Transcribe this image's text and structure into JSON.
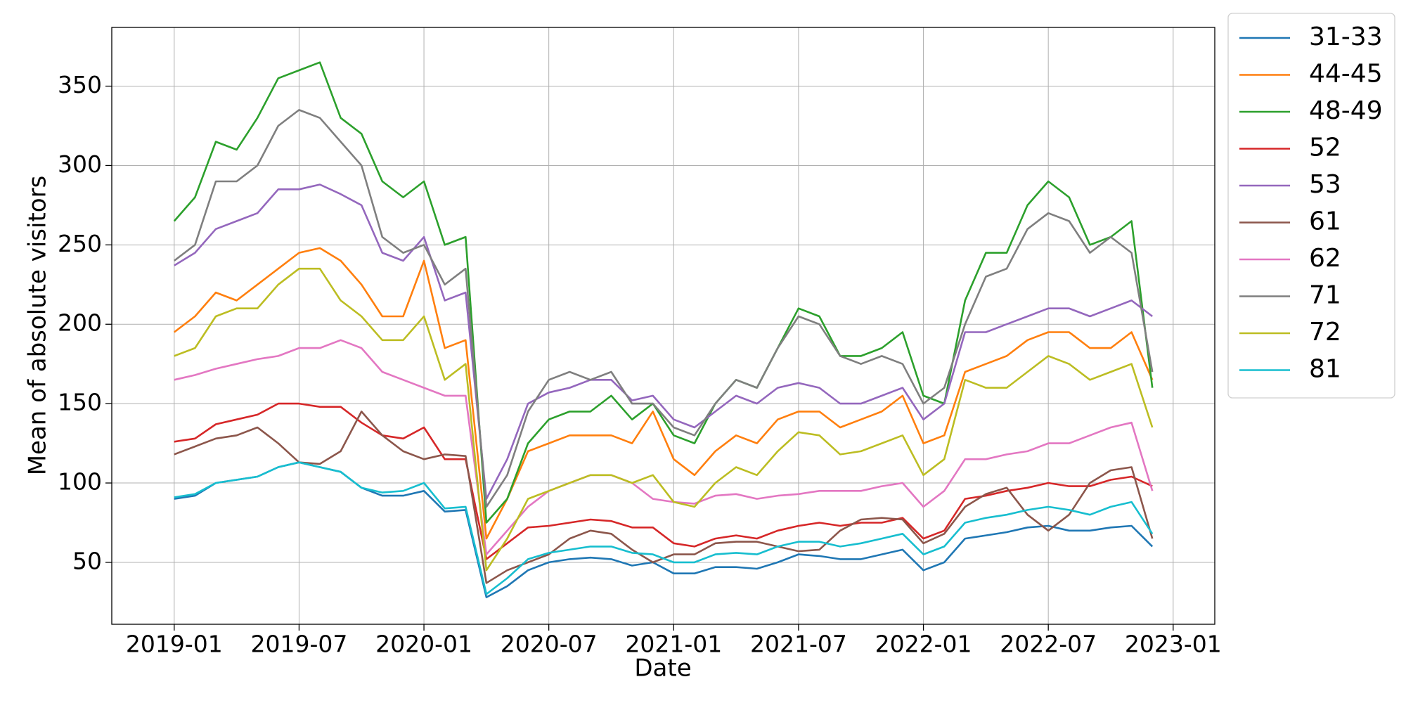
{
  "chart_data": {
    "type": "line",
    "x_label": "Date",
    "y_label": "Mean of absolute visitors",
    "x": [
      "2019-01",
      "2019-02",
      "2019-03",
      "2019-04",
      "2019-05",
      "2019-06",
      "2019-07",
      "2019-08",
      "2019-09",
      "2019-10",
      "2019-11",
      "2019-12",
      "2020-01",
      "2020-02",
      "2020-03",
      "2020-04",
      "2020-05",
      "2020-06",
      "2020-07",
      "2020-08",
      "2020-09",
      "2020-10",
      "2020-11",
      "2020-12",
      "2021-01",
      "2021-02",
      "2021-03",
      "2021-04",
      "2021-05",
      "2021-06",
      "2021-07",
      "2021-08",
      "2021-09",
      "2021-10",
      "2021-11",
      "2021-12",
      "2022-01",
      "2022-02",
      "2022-03",
      "2022-04",
      "2022-05",
      "2022-06",
      "2022-07",
      "2022-08",
      "2022-09",
      "2022-10",
      "2022-11",
      "2022-12"
    ],
    "xlim": [
      "2018-10",
      "2023-03"
    ],
    "xticks": [
      "2019-01",
      "2019-07",
      "2020-01",
      "2020-07",
      "2021-01",
      "2021-07",
      "2022-01",
      "2022-07",
      "2023-01"
    ],
    "ylim": [
      11,
      387
    ],
    "yticks": [
      50,
      100,
      150,
      200,
      250,
      300,
      350
    ],
    "grid": true,
    "legend": "outside-right",
    "series": [
      {
        "name": "31-33",
        "color": "#1f77b4",
        "values": [
          90,
          92,
          100,
          102,
          104,
          110,
          113,
          110,
          107,
          97,
          92,
          92,
          95,
          82,
          83,
          28,
          35,
          45,
          50,
          52,
          53,
          52,
          48,
          50,
          43,
          43,
          47,
          47,
          46,
          50,
          55,
          54,
          52,
          52,
          55,
          58,
          45,
          50,
          65,
          67,
          69,
          72,
          73,
          70,
          70,
          72,
          73,
          60
        ]
      },
      {
        "name": "44-45",
        "color": "#ff7f0e",
        "values": [
          195,
          205,
          220,
          215,
          225,
          235,
          245,
          248,
          240,
          225,
          205,
          205,
          240,
          185,
          190,
          65,
          90,
          120,
          125,
          130,
          130,
          130,
          125,
          145,
          115,
          105,
          120,
          130,
          125,
          140,
          145,
          145,
          135,
          140,
          145,
          155,
          125,
          130,
          170,
          175,
          180,
          190,
          195,
          195,
          185,
          185,
          195,
          165
        ]
      },
      {
        "name": "48-49",
        "color": "#2ca02c",
        "values": [
          265,
          280,
          315,
          310,
          330,
          355,
          360,
          365,
          330,
          320,
          290,
          280,
          290,
          250,
          255,
          75,
          90,
          125,
          140,
          145,
          145,
          155,
          140,
          150,
          130,
          125,
          150,
          165,
          160,
          185,
          210,
          205,
          180,
          180,
          185,
          195,
          155,
          150,
          215,
          245,
          245,
          275,
          290,
          280,
          250,
          255,
          265,
          160
        ]
      },
      {
        "name": "52",
        "color": "#d62728",
        "values": [
          126,
          128,
          137,
          140,
          143,
          150,
          150,
          148,
          148,
          138,
          130,
          128,
          135,
          115,
          115,
          52,
          62,
          72,
          73,
          75,
          77,
          76,
          72,
          72,
          62,
          60,
          65,
          67,
          65,
          70,
          73,
          75,
          73,
          75,
          75,
          78,
          65,
          70,
          90,
          92,
          95,
          97,
          100,
          98,
          98,
          102,
          104,
          98
        ]
      },
      {
        "name": "53",
        "color": "#9467bd",
        "values": [
          237,
          245,
          260,
          265,
          270,
          285,
          285,
          288,
          282,
          275,
          245,
          240,
          255,
          215,
          220,
          90,
          115,
          150,
          157,
          160,
          165,
          165,
          152,
          155,
          140,
          135,
          145,
          155,
          150,
          160,
          163,
          160,
          150,
          150,
          155,
          160,
          140,
          150,
          195,
          195,
          200,
          205,
          210,
          210,
          205,
          210,
          215,
          205
        ]
      },
      {
        "name": "61",
        "color": "#8c564b",
        "values": [
          118,
          123,
          128,
          130,
          135,
          125,
          113,
          112,
          120,
          145,
          130,
          120,
          115,
          118,
          117,
          37,
          45,
          50,
          55,
          65,
          70,
          68,
          58,
          50,
          55,
          55,
          62,
          63,
          63,
          60,
          57,
          58,
          70,
          77,
          78,
          77,
          62,
          68,
          85,
          93,
          97,
          80,
          70,
          80,
          100,
          108,
          110,
          65
        ]
      },
      {
        "name": "62",
        "color": "#e377c2",
        "values": [
          165,
          168,
          172,
          175,
          178,
          180,
          185,
          185,
          190,
          185,
          170,
          165,
          160,
          155,
          155,
          55,
          70,
          85,
          95,
          100,
          105,
          105,
          100,
          90,
          88,
          87,
          92,
          93,
          90,
          92,
          93,
          95,
          95,
          95,
          98,
          100,
          85,
          95,
          115,
          115,
          118,
          120,
          125,
          125,
          130,
          135,
          138,
          95
        ]
      },
      {
        "name": "71",
        "color": "#7f7f7f",
        "values": [
          240,
          250,
          290,
          290,
          300,
          325,
          335,
          330,
          315,
          300,
          255,
          245,
          250,
          225,
          235,
          85,
          105,
          145,
          165,
          170,
          165,
          170,
          150,
          150,
          135,
          130,
          150,
          165,
          160,
          185,
          205,
          200,
          180,
          175,
          180,
          175,
          150,
          160,
          200,
          230,
          235,
          260,
          270,
          265,
          245,
          255,
          245,
          170
        ]
      },
      {
        "name": "72",
        "color": "#bcbd22",
        "values": [
          180,
          185,
          205,
          210,
          210,
          225,
          235,
          235,
          215,
          205,
          190,
          190,
          205,
          165,
          175,
          45,
          65,
          90,
          95,
          100,
          105,
          105,
          100,
          105,
          88,
          85,
          100,
          110,
          105,
          120,
          132,
          130,
          118,
          120,
          125,
          130,
          105,
          115,
          165,
          160,
          160,
          170,
          180,
          175,
          165,
          170,
          175,
          135
        ]
      },
      {
        "name": "81",
        "color": "#17becf",
        "values": [
          91,
          93,
          100,
          102,
          104,
          110,
          113,
          110,
          107,
          97,
          94,
          95,
          100,
          84,
          85,
          30,
          40,
          52,
          56,
          58,
          60,
          60,
          56,
          55,
          50,
          50,
          55,
          56,
          55,
          60,
          63,
          63,
          60,
          62,
          65,
          68,
          55,
          60,
          75,
          78,
          80,
          83,
          85,
          83,
          80,
          85,
          88,
          68
        ]
      }
    ]
  }
}
